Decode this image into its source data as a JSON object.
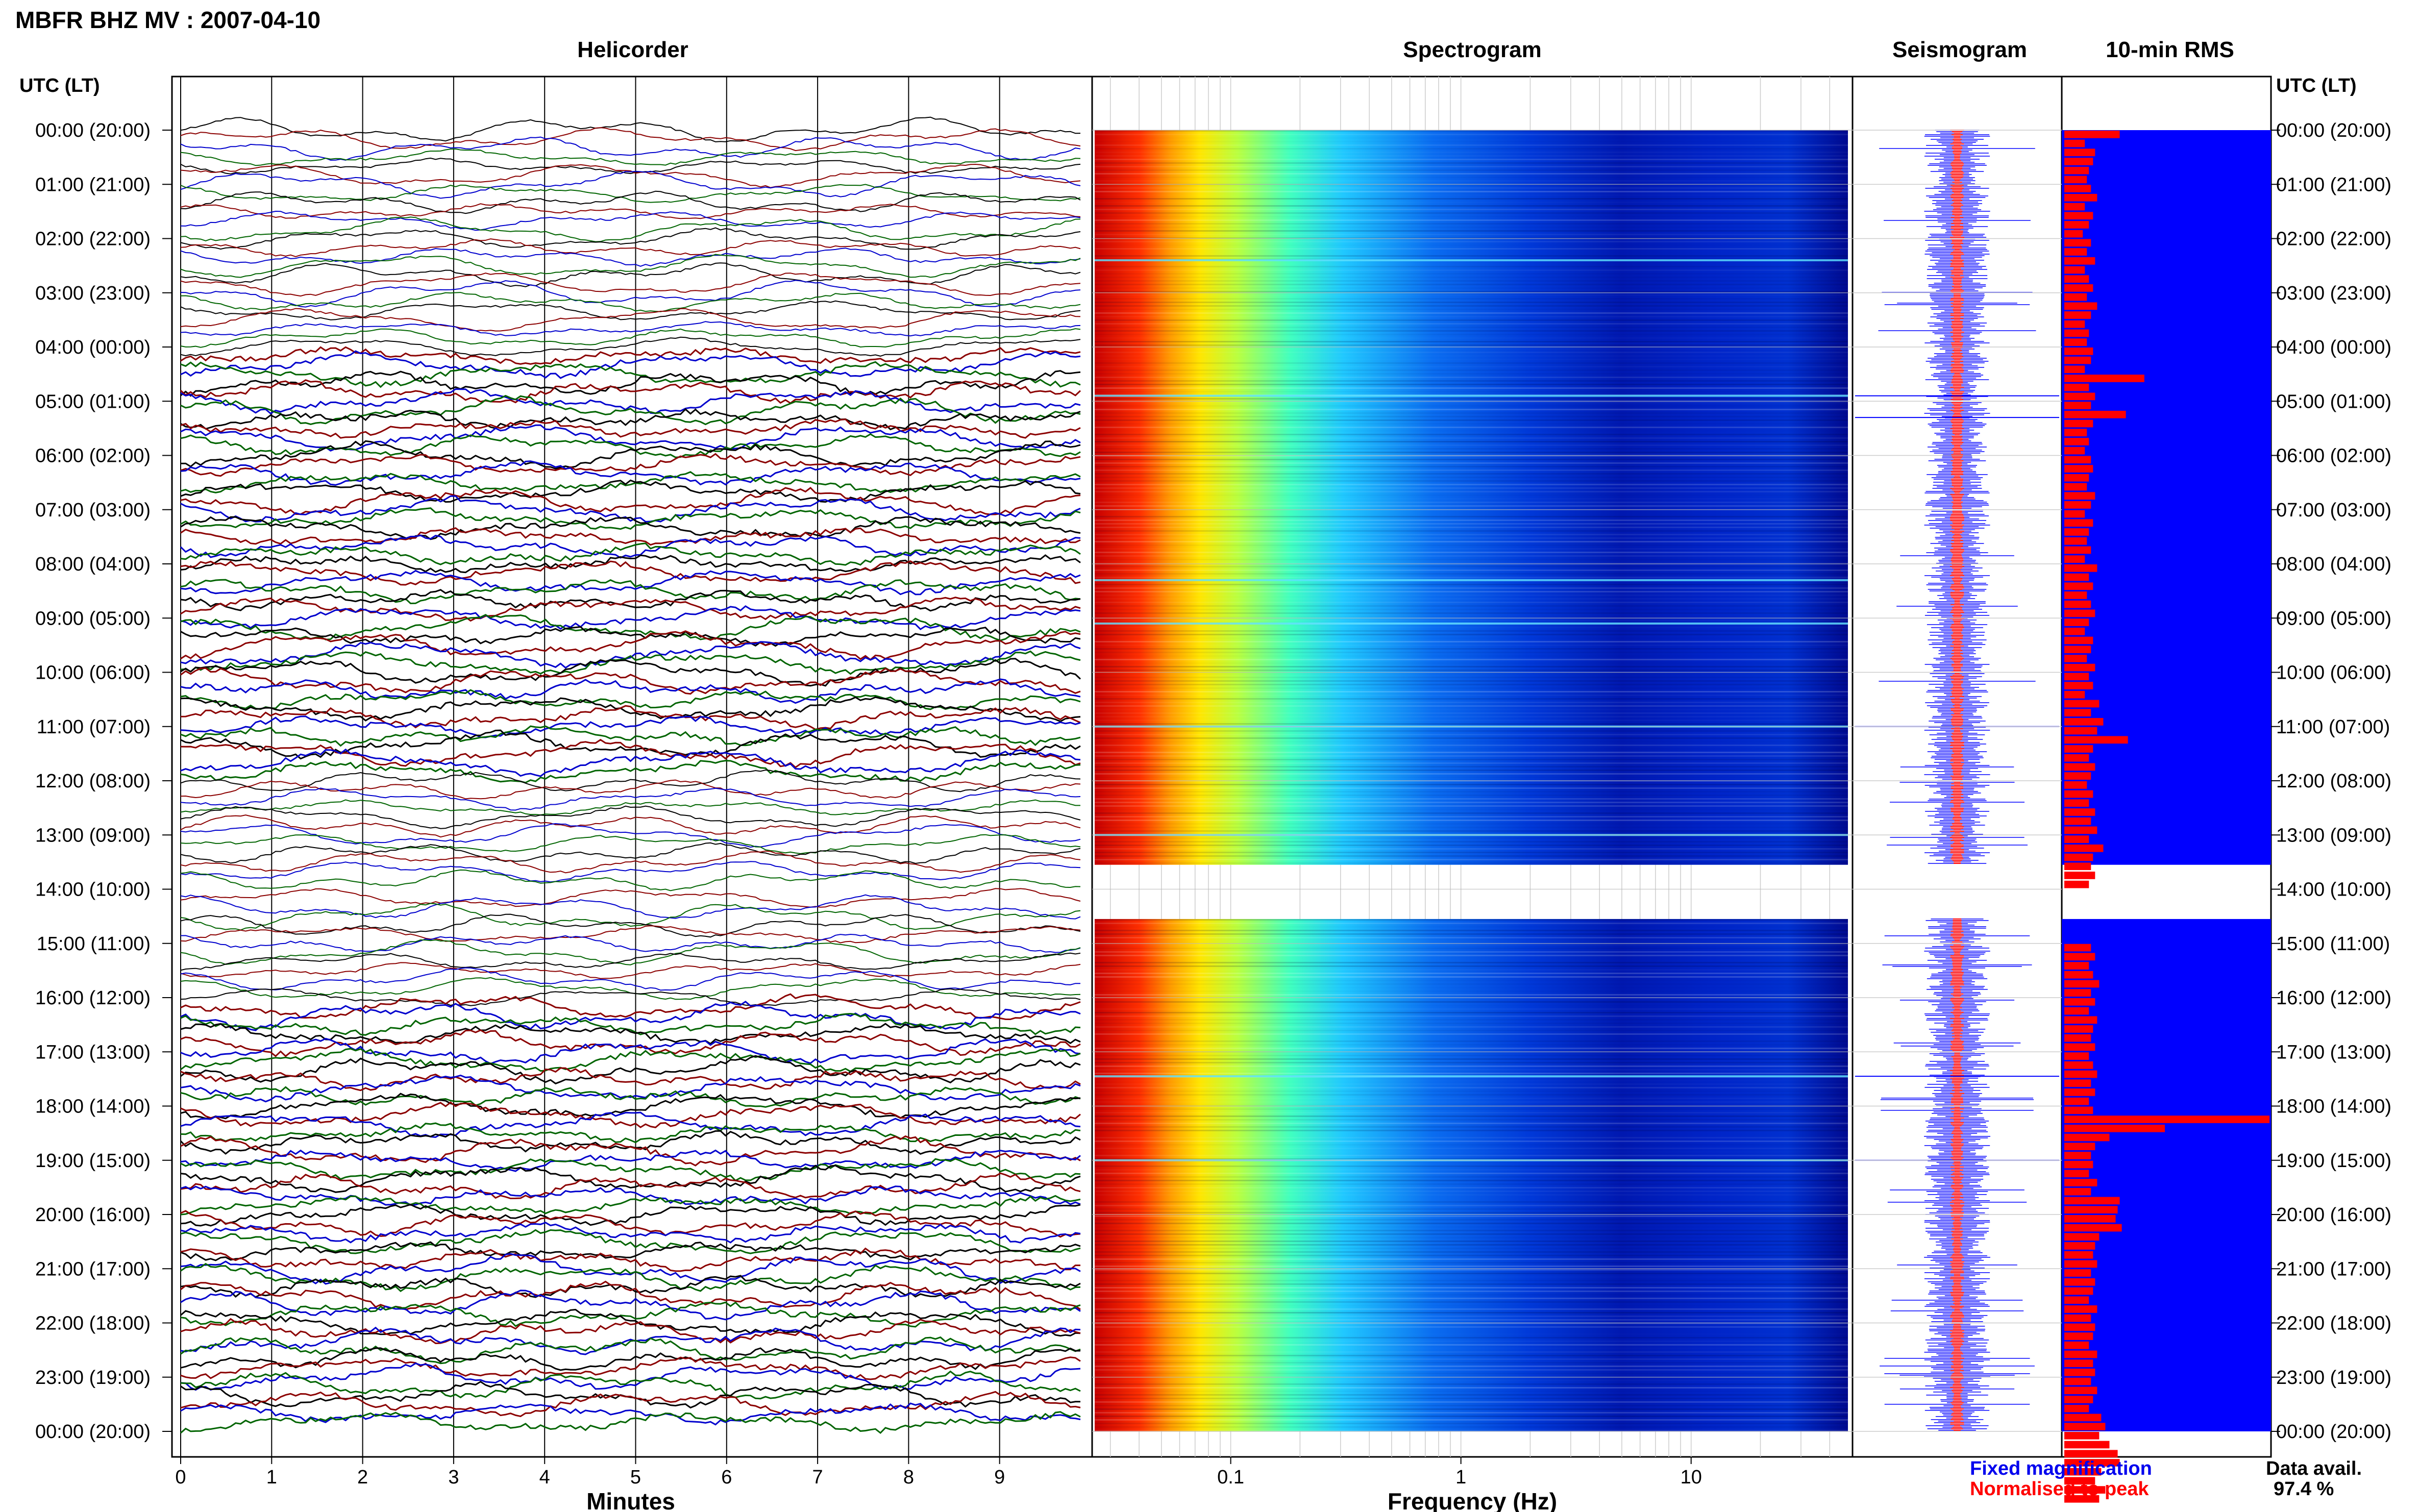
{
  "title": "MBFR BHZ MV : 2007-04-10",
  "panels": {
    "helicorder": "Helicorder",
    "spectrogram": "Spectrogram",
    "seismogram": "Seismogram",
    "rms": "10-min RMS"
  },
  "time_axis_label": "UTC (LT)",
  "time_labels": [
    "00:00 (20:00)",
    "01:00 (21:00)",
    "02:00 (22:00)",
    "03:00 (23:00)",
    "04:00 (00:00)",
    "05:00 (01:00)",
    "06:00 (02:00)",
    "07:00 (03:00)",
    "08:00 (04:00)",
    "09:00 (05:00)",
    "10:00 (06:00)",
    "11:00 (07:00)",
    "12:00 (08:00)",
    "13:00 (09:00)",
    "14:00 (10:00)",
    "15:00 (11:00)",
    "16:00 (12:00)",
    "17:00 (13:00)",
    "18:00 (14:00)",
    "19:00 (15:00)",
    "20:00 (16:00)",
    "21:00 (17:00)",
    "22:00 (18:00)",
    "23:00 (19:00)",
    "00:00 (20:00)"
  ],
  "legend": {
    "fixed": "Fixed magnification",
    "normalised": "Normalised to peak",
    "fixed_color": "#0000ee",
    "normalised_color": "#ff0000"
  },
  "data_availability": {
    "label": "Data avail.",
    "value": "97.4 %"
  },
  "colors": {
    "trace_cycle": [
      "#000000",
      "#8b0000",
      "#0000cd",
      "#006400"
    ],
    "seis_fixed": "#0000ff",
    "seis_norm": "#ff0000",
    "rms_background": "#0000ff",
    "rms_bar": "#ff0000"
  },
  "chart_data": [
    {
      "type": "line",
      "name": "helicorder",
      "title": "Helicorder",
      "xlabel": "Minutes",
      "x_ticks": [
        "0",
        "1",
        "2",
        "3",
        "4",
        "5",
        "6",
        "7",
        "8",
        "9"
      ],
      "xlim": [
        0,
        10
      ],
      "rows_per_hour": 6,
      "row_minutes": 10,
      "gap_hours": [
        14
      ],
      "ylabel": "UTC (LT)"
    },
    {
      "type": "heatmap",
      "name": "spectrogram",
      "title": "Spectrogram",
      "xlabel": "Frequency (Hz)",
      "x_scale": "log",
      "x_ticks": [
        "0.1",
        "1",
        "10"
      ],
      "xlim": [
        0.025,
        50
      ],
      "colormap": "jet",
      "gap_hours": [
        14
      ],
      "events_utc_hours": [
        2.4,
        4.9,
        8.3,
        9.1,
        11.0,
        13.0,
        17.45,
        19.0
      ]
    },
    {
      "type": "line",
      "name": "seismogram",
      "title": "Seismogram",
      "series": [
        {
          "name": "Fixed magnification",
          "color": "#0000ff"
        },
        {
          "name": "Normalised to peak",
          "color": "#ff0000"
        }
      ],
      "gap_hours": [
        14
      ]
    },
    {
      "type": "bar",
      "name": "rms",
      "title": "10-min RMS",
      "orientation": "horizontal",
      "interval_minutes": 10,
      "values": [
        0.27,
        0.1,
        0.15,
        0.14,
        0.12,
        0.11,
        0.13,
        0.16,
        0.1,
        0.14,
        0.12,
        0.09,
        0.13,
        0.11,
        0.15,
        0.1,
        0.12,
        0.14,
        0.11,
        0.16,
        0.13,
        0.1,
        0.12,
        0.11,
        0.14,
        0.13,
        0.1,
        0.39,
        0.12,
        0.15,
        0.13,
        0.3,
        0.14,
        0.11,
        0.12,
        0.1,
        0.13,
        0.14,
        0.12,
        0.11,
        0.15,
        0.13,
        0.1,
        0.14,
        0.12,
        0.11,
        0.13,
        0.1,
        0.16,
        0.12,
        0.14,
        0.11,
        0.13,
        0.15,
        0.12,
        0.1,
        0.14,
        0.13,
        0.11,
        0.15,
        0.12,
        0.14,
        0.1,
        0.17,
        0.13,
        0.19,
        0.16,
        0.31,
        0.14,
        0.12,
        0.15,
        0.13,
        0.11,
        0.14,
        0.12,
        0.15,
        0.13,
        0.16,
        0.12,
        0.19,
        0.14,
        0.13,
        0.15,
        0.12,
        0.0,
        0.0,
        0.0,
        0.0,
        0.0,
        0.0,
        0.13,
        0.15,
        0.12,
        0.14,
        0.17,
        0.13,
        0.15,
        0.12,
        0.16,
        0.14,
        0.13,
        0.15,
        0.12,
        0.14,
        0.16,
        0.13,
        0.15,
        0.12,
        0.14,
        1.0,
        0.49,
        0.22,
        0.15,
        0.13,
        0.14,
        0.12,
        0.16,
        0.13,
        0.27,
        0.26,
        0.25,
        0.28,
        0.17,
        0.15,
        0.14,
        0.16,
        0.13,
        0.15,
        0.14,
        0.12,
        0.16,
        0.13,
        0.15,
        0.14,
        0.12,
        0.16,
        0.14,
        0.15,
        0.13,
        0.16,
        0.14,
        0.12,
        0.18,
        0.2,
        0.17,
        0.22,
        0.26,
        0.27,
        0.18,
        0.15,
        0.2,
        0.17
      ],
      "xlim": [
        0,
        1
      ],
      "gap_hours": [
        14
      ]
    }
  ]
}
